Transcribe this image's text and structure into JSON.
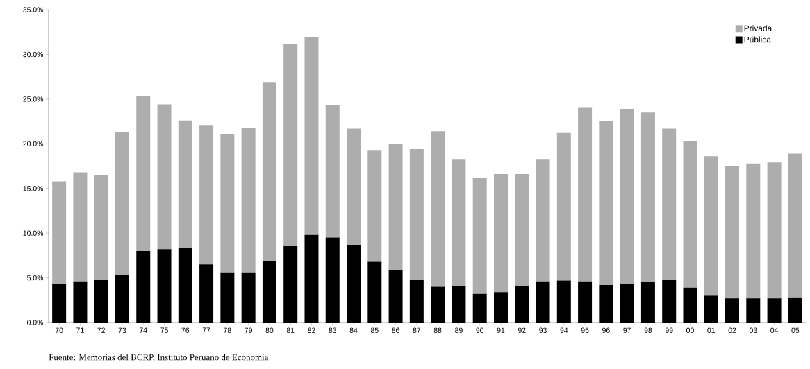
{
  "chart_data": {
    "type": "bar",
    "stacked": true,
    "categories": [
      "70",
      "71",
      "72",
      "73",
      "74",
      "75",
      "76",
      "77",
      "78",
      "79",
      "80",
      "81",
      "82",
      "83",
      "84",
      "85",
      "86",
      "87",
      "88",
      "89",
      "90",
      "91",
      "92",
      "93",
      "94",
      "95",
      "96",
      "97",
      "98",
      "99",
      "00",
      "01",
      "02",
      "03",
      "04",
      "05"
    ],
    "series": [
      {
        "name": "Pública",
        "color": "#000000",
        "values": [
          4.3,
          4.6,
          4.8,
          5.3,
          8.0,
          8.2,
          8.3,
          6.5,
          5.6,
          5.6,
          6.9,
          8.6,
          9.8,
          9.5,
          8.7,
          6.8,
          5.9,
          4.8,
          4.0,
          4.1,
          3.2,
          3.4,
          4.1,
          4.6,
          4.7,
          4.6,
          4.2,
          4.3,
          4.5,
          4.8,
          3.9,
          3.0,
          2.7,
          2.7,
          2.7,
          2.8
        ]
      },
      {
        "name": "Privada",
        "color": "#adadad",
        "values": [
          11.5,
          12.2,
          11.7,
          16.0,
          17.3,
          16.2,
          14.3,
          15.6,
          15.5,
          16.2,
          20.0,
          22.6,
          22.1,
          14.8,
          13.0,
          12.5,
          14.1,
          14.6,
          17.4,
          14.2,
          13.0,
          13.2,
          12.5,
          13.7,
          16.5,
          19.5,
          18.3,
          19.6,
          19.0,
          16.9,
          16.4,
          15.6,
          14.8,
          15.1,
          15.2,
          16.1
        ]
      }
    ],
    "ylim": [
      0,
      35
    ],
    "yticks": [
      {
        "value": 0,
        "label": "0.0%"
      },
      {
        "value": 5,
        "label": "5.0%"
      },
      {
        "value": 10,
        "label": "10.0%"
      },
      {
        "value": 15,
        "label": "15.0%"
      },
      {
        "value": 20,
        "label": "20.0%"
      },
      {
        "value": 25,
        "label": "25.0%"
      },
      {
        "value": 30,
        "label": "30.0%"
      },
      {
        "value": 35,
        "label": "35.0%"
      }
    ],
    "legend": "top right",
    "annotations": [
      "Fuente: Memorias del BCRP, Instituto Peruano de Economía"
    ]
  }
}
